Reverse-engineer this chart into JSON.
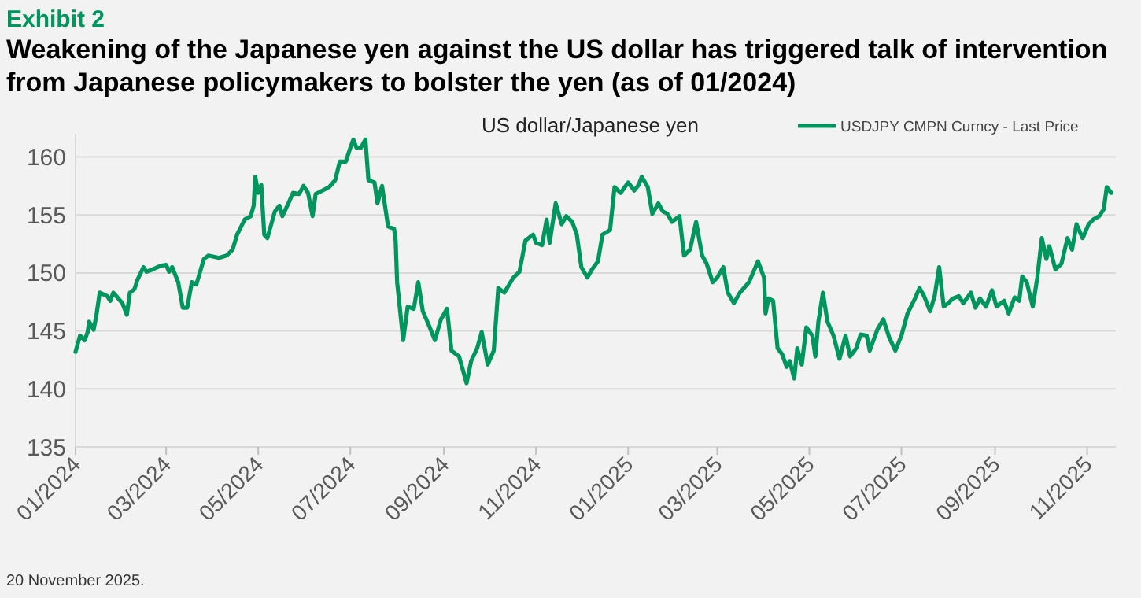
{
  "chart_data": {
    "type": "line",
    "title": "Weakening of the Japanese yen against the US dollar has triggered talk of intervention from Japanese policymakers to bolster the yen (as of 01/2024)",
    "subtitle": "US dollar/Japanese yen",
    "annotations": [
      "Exhibit 2",
      "20 November 2025."
    ],
    "xlim": [
      "2024-01-01",
      "2025-11-20"
    ],
    "ylim": [
      135,
      162
    ],
    "xticks": [
      {
        "value": "2024-01-01",
        "label": "01/2024"
      },
      {
        "value": "2024-03-01",
        "label": "03/2024"
      },
      {
        "value": "2024-05-01",
        "label": "05/2024"
      },
      {
        "value": "2024-07-01",
        "label": "07/2024"
      },
      {
        "value": "2024-09-01",
        "label": "09/2024"
      },
      {
        "value": "2024-11-01",
        "label": "11/2024"
      },
      {
        "value": "2025-01-01",
        "label": "01/2025"
      },
      {
        "value": "2025-03-01",
        "label": "03/2025"
      },
      {
        "value": "2025-05-01",
        "label": "05/2025"
      },
      {
        "value": "2025-07-01",
        "label": "07/2025"
      },
      {
        "value": "2025-09-01",
        "label": "09/2025"
      },
      {
        "value": "2025-11-01",
        "label": "11/2025"
      }
    ],
    "yticks": [
      135,
      140,
      145,
      150,
      155,
      160
    ],
    "grid": "y",
    "legend": "top right",
    "marker": "none",
    "line_style": "solid",
    "x": [
      "2024-01-01",
      "2024-01-04",
      "2024-01-07",
      "2024-01-09",
      "2024-01-10",
      "2024-01-13",
      "2024-01-15",
      "2024-01-17",
      "2024-01-22",
      "2024-01-24",
      "2024-01-26",
      "2024-02-01",
      "2024-02-04",
      "2024-02-06",
      "2024-02-09",
      "2024-02-11",
      "2024-02-15",
      "2024-02-17",
      "2024-02-21",
      "2024-02-26",
      "2024-03-01",
      "2024-03-03",
      "2024-03-05",
      "2024-03-09",
      "2024-03-12",
      "2024-03-15",
      "2024-03-18",
      "2024-03-21",
      "2024-03-26",
      "2024-03-29",
      "2024-04-05",
      "2024-04-10",
      "2024-04-14",
      "2024-04-17",
      "2024-04-22",
      "2024-04-26",
      "2024-04-28",
      "2024-04-29",
      "2024-05-01",
      "2024-05-03",
      "2024-05-05",
      "2024-05-07",
      "2024-05-09",
      "2024-05-12",
      "2024-05-15",
      "2024-05-17",
      "2024-05-21",
      "2024-05-24",
      "2024-05-28",
      "2024-05-31",
      "2024-06-03",
      "2024-06-06",
      "2024-06-08",
      "2024-06-11",
      "2024-06-17",
      "2024-06-21",
      "2024-06-24",
      "2024-06-28",
      "2024-07-01",
      "2024-07-03",
      "2024-07-05",
      "2024-07-08",
      "2024-07-11",
      "2024-07-13",
      "2024-07-17",
      "2024-07-19",
      "2024-07-22",
      "2024-07-26",
      "2024-07-30",
      "2024-07-31",
      "2024-08-01",
      "2024-08-05",
      "2024-08-08",
      "2024-08-12",
      "2024-08-15",
      "2024-08-18",
      "2024-08-22",
      "2024-08-26",
      "2024-08-30",
      "2024-09-03",
      "2024-09-06",
      "2024-09-11",
      "2024-09-16",
      "2024-09-19",
      "2024-09-23",
      "2024-09-26",
      "2024-09-30",
      "2024-10-04",
      "2024-10-07",
      "2024-10-11",
      "2024-10-17",
      "2024-10-21",
      "2024-10-25",
      "2024-10-30",
      "2024-11-01",
      "2024-11-05",
      "2024-11-08",
      "2024-11-10",
      "2024-11-14",
      "2024-11-18",
      "2024-11-21",
      "2024-11-25",
      "2024-11-28",
      "2024-12-01",
      "2024-12-05",
      "2024-12-08",
      "2024-12-12",
      "2024-12-15",
      "2024-12-20",
      "2024-12-23",
      "2024-12-27",
      "2025-01-01",
      "2025-01-05",
      "2025-01-08",
      "2025-01-10",
      "2025-01-14",
      "2025-01-17",
      "2025-01-21",
      "2025-01-24",
      "2025-01-27",
      "2025-01-30",
      "2025-02-04",
      "2025-02-07",
      "2025-02-11",
      "2025-02-15",
      "2025-02-19",
      "2025-02-22",
      "2025-02-26",
      "2025-03-01",
      "2025-03-05",
      "2025-03-08",
      "2025-03-12",
      "2025-03-16",
      "2025-03-22",
      "2025-03-25",
      "2025-03-28",
      "2025-04-01",
      "2025-04-02",
      "2025-04-04",
      "2025-04-07",
      "2025-04-10",
      "2025-04-13",
      "2025-04-16",
      "2025-04-18",
      "2025-04-21",
      "2025-04-23",
      "2025-04-26",
      "2025-04-29",
      "2025-05-03",
      "2025-05-05",
      "2025-05-07",
      "2025-05-10",
      "2025-05-13",
      "2025-05-17",
      "2025-05-21",
      "2025-05-25",
      "2025-05-28",
      "2025-06-01",
      "2025-06-04",
      "2025-06-08",
      "2025-06-10",
      "2025-06-15",
      "2025-06-19",
      "2025-06-23",
      "2025-06-27",
      "2025-07-01",
      "2025-07-05",
      "2025-07-10",
      "2025-07-13",
      "2025-07-16",
      "2025-07-20",
      "2025-07-23",
      "2025-07-26",
      "2025-07-29",
      "2025-08-01",
      "2025-08-04",
      "2025-08-08",
      "2025-08-11",
      "2025-08-16",
      "2025-08-19",
      "2025-08-22",
      "2025-08-26",
      "2025-08-30",
      "2025-09-02",
      "2025-09-07",
      "2025-09-10",
      "2025-09-14",
      "2025-09-17",
      "2025-09-19",
      "2025-09-22",
      "2025-09-26",
      "2025-09-29",
      "2025-10-02",
      "2025-10-05",
      "2025-10-07",
      "2025-10-11",
      "2025-10-15",
      "2025-10-19",
      "2025-10-22",
      "2025-10-25",
      "2025-10-29",
      "2025-11-02",
      "2025-11-05",
      "2025-11-09",
      "2025-11-12",
      "2025-11-14",
      "2025-11-17"
    ],
    "series": [
      {
        "name": "USDJPY CMPN Curncy - Last Price",
        "color": "#00965e",
        "values": [
          143.2,
          144.6,
          144.2,
          144.9,
          145.8,
          145.1,
          146.5,
          148.3,
          148.0,
          147.6,
          148.3,
          147.4,
          146.4,
          148.3,
          148.6,
          149.4,
          150.5,
          150.1,
          150.3,
          150.6,
          150.7,
          150.1,
          150.5,
          149.2,
          147.0,
          147.0,
          149.2,
          149.0,
          151.2,
          151.5,
          151.3,
          151.5,
          152.0,
          153.3,
          154.6,
          154.9,
          155.8,
          158.3,
          156.9,
          157.6,
          153.3,
          153.0,
          153.9,
          155.3,
          155.8,
          154.9,
          156.0,
          156.9,
          156.8,
          157.5,
          156.9,
          154.9,
          156.8,
          157.0,
          157.4,
          158.0,
          159.6,
          159.6,
          160.8,
          161.5,
          160.8,
          160.8,
          161.5,
          158.0,
          157.8,
          156.0,
          157.5,
          154.0,
          153.8,
          152.8,
          149.2,
          144.2,
          147.1,
          146.9,
          149.2,
          146.7,
          145.5,
          144.2,
          146.0,
          146.9,
          143.3,
          142.8,
          140.5,
          142.4,
          143.5,
          144.9,
          142.1,
          143.3,
          148.7,
          148.3,
          149.6,
          150.1,
          152.8,
          153.3,
          152.6,
          152.4,
          154.6,
          152.6,
          156.0,
          154.2,
          154.9,
          154.4,
          153.3,
          150.5,
          149.6,
          150.3,
          151.0,
          153.3,
          153.7,
          157.4,
          156.9,
          157.8,
          157.1,
          157.6,
          158.3,
          157.4,
          155.1,
          156.0,
          155.3,
          155.1,
          154.4,
          154.9,
          151.5,
          152.0,
          154.4,
          151.5,
          150.8,
          149.2,
          149.6,
          150.5,
          148.3,
          147.4,
          148.3,
          149.2,
          150.1,
          151.0,
          149.6,
          146.5,
          147.8,
          147.6,
          143.5,
          143.0,
          141.9,
          142.4,
          140.9,
          143.5,
          142.1,
          145.3,
          144.6,
          142.8,
          145.8,
          148.3,
          145.8,
          144.6,
          142.6,
          144.6,
          142.8,
          143.5,
          144.7,
          144.6,
          143.3,
          145.1,
          146.0,
          144.4,
          143.3,
          144.6,
          146.5,
          147.8,
          148.7,
          148.0,
          146.7,
          148.0,
          150.5,
          147.1,
          147.4,
          147.8,
          148.0,
          147.4,
          148.3,
          147.0,
          147.8,
          147.1,
          148.5,
          147.1,
          147.6,
          146.5,
          147.9,
          147.6,
          149.7,
          149.2,
          147.1,
          149.6,
          153.0,
          151.2,
          152.3,
          150.3,
          150.8,
          153.0,
          152.0,
          154.2,
          153.0,
          154.2,
          154.6,
          154.9,
          155.5,
          157.4,
          156.9
        ]
      }
    ]
  }
}
